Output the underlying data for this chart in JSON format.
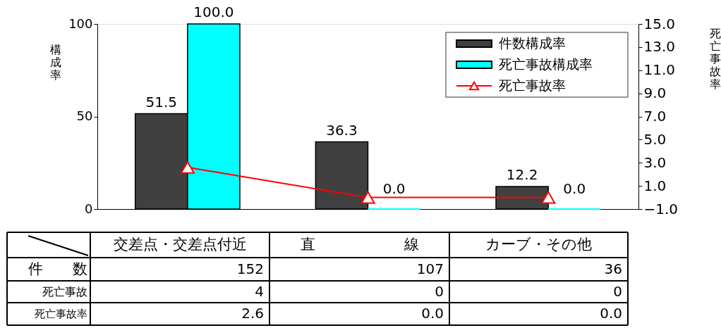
{
  "chart_data": {
    "type": "bar",
    "ylabel": "構成率",
    "y2label": "死亡事故率",
    "categories": [
      "交差点・交差点付近",
      "直　　　　　　線",
      "カーブ・その他"
    ],
    "series": [
      {
        "name": "件数構成率",
        "color": "#404040",
        "values": [
          51.5,
          36.3,
          12.2
        ],
        "value_labels": [
          "51.5",
          "36.3",
          "12.2"
        ]
      },
      {
        "name": "死亡事故構成率",
        "color": "#00ffff",
        "values": [
          100.0,
          0.0,
          0.0
        ],
        "value_labels": [
          "100.0",
          "0.0",
          "0.0"
        ]
      },
      {
        "name": "死亡事故率",
        "type": "line",
        "axis": "y2",
        "color": "#ff0000",
        "values": [
          2.6,
          0.0,
          0.0
        ],
        "value_labels": [
          "2.6",
          "0.0",
          "0.0"
        ]
      }
    ],
    "ylim": [
      0,
      100
    ],
    "yticks": [
      0,
      50,
      100
    ],
    "y2lim": [
      -1,
      15
    ],
    "y2ticks": [
      {
        "value": -1,
        "label": "−1.0"
      },
      {
        "value": 1,
        "label": "1.0"
      },
      {
        "value": 3,
        "label": "3.0"
      },
      {
        "value": 5,
        "label": "5.0"
      },
      {
        "value": 7,
        "label": "7.0"
      },
      {
        "value": 9,
        "label": "9.0"
      },
      {
        "value": 11,
        "label": "11.0"
      },
      {
        "value": 13,
        "label": "13.0"
      },
      {
        "value": 15,
        "label": "15.0"
      }
    ],
    "marker": "triangle",
    "line_style": "solid",
    "legend": "top right",
    "grid": false,
    "tick_labels": "y",
    "annotations": [
      "件　　数",
      "152",
      "107",
      "36",
      "死亡事故",
      "4",
      "0",
      "0",
      "死亡事故率"
    ]
  }
}
